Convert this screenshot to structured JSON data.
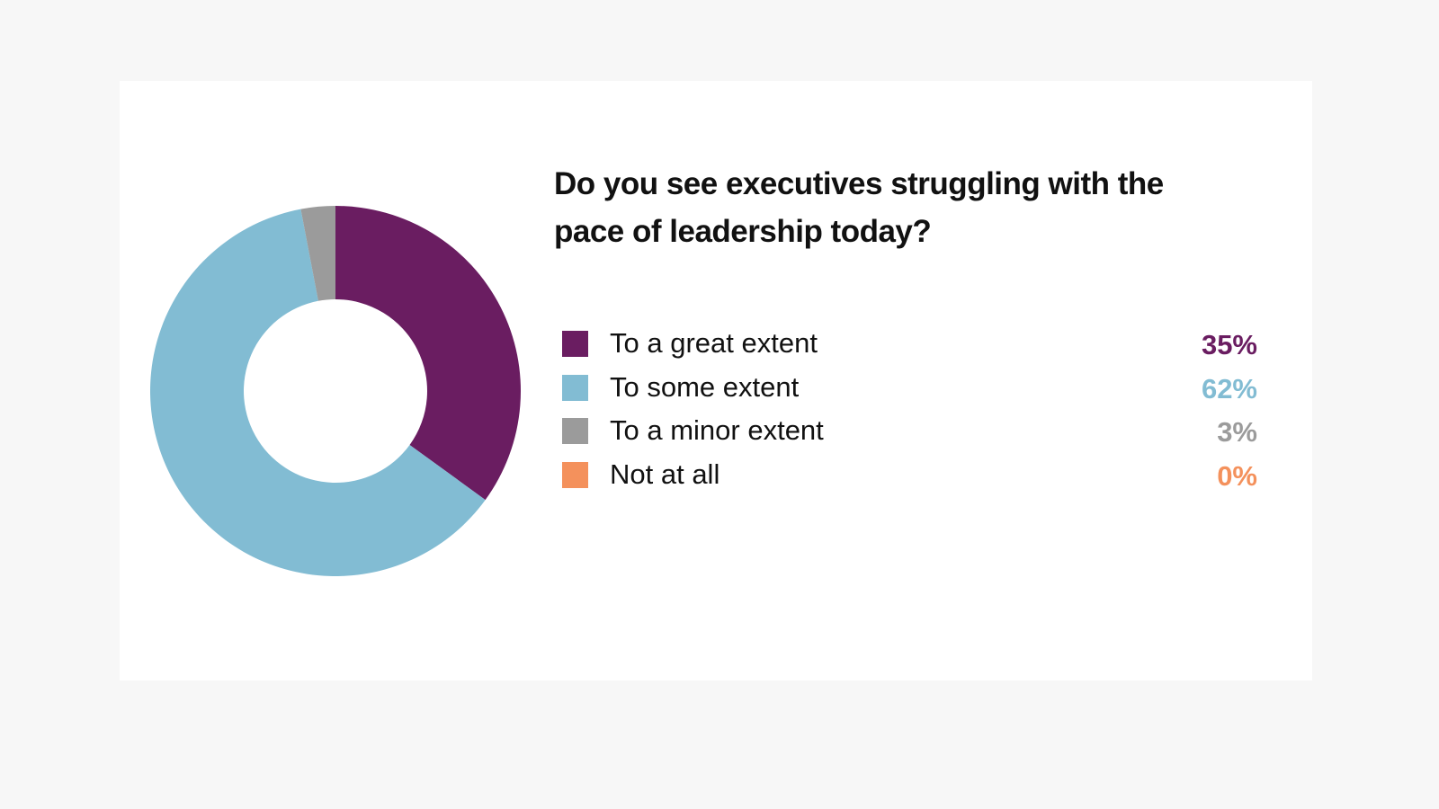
{
  "chart_data": {
    "type": "pie",
    "variant": "donut",
    "title": "Do you see executives struggling with the pace of leadership today?",
    "categories": [
      "To a great extent",
      "To some extent",
      "To a minor extent",
      "Not at all"
    ],
    "values": [
      35,
      62,
      3,
      0
    ],
    "value_labels": [
      "35%",
      "62%",
      "3%",
      "0%"
    ],
    "colors": [
      "#6a1d61",
      "#82bcd3",
      "#9b9b9b",
      "#f4915c"
    ],
    "legend_position": "right"
  }
}
